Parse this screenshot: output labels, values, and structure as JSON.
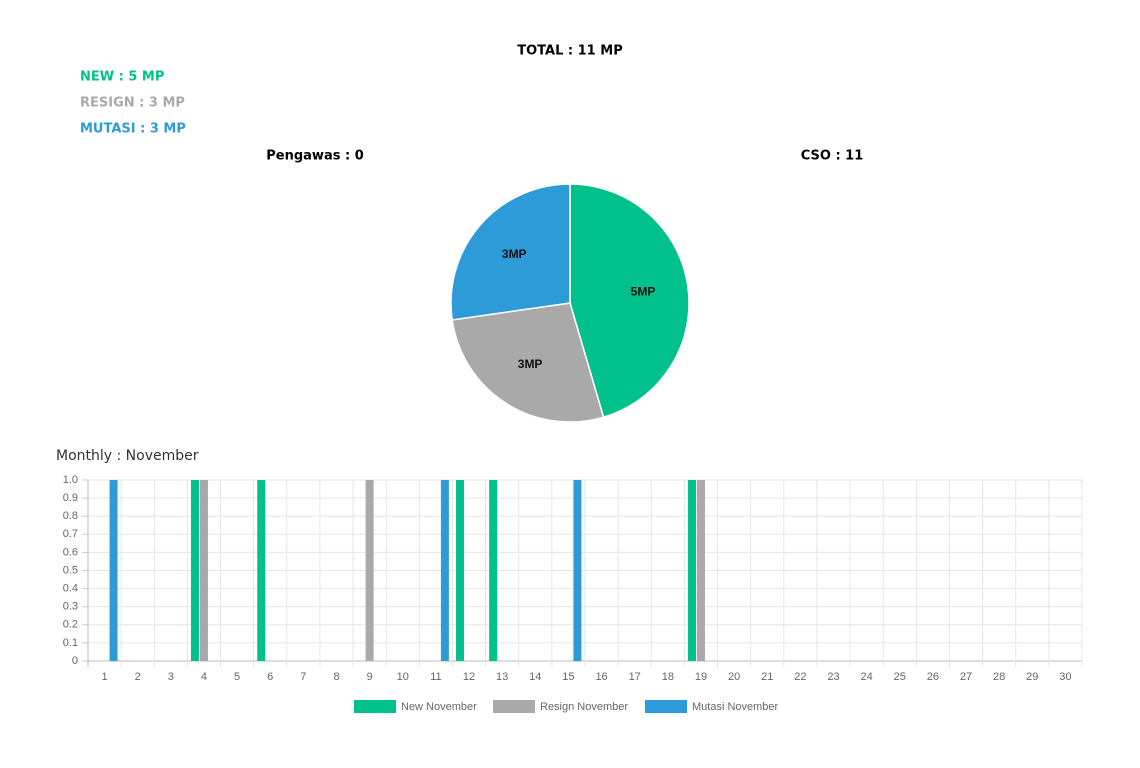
{
  "header": {
    "total": "TOTAL : 11 MP",
    "new": "NEW : 5 MP",
    "resign": "RESIGN : 3 MP",
    "mutasi": "MUTASI : 3 MP",
    "pengawas": "Pengawas : 0",
    "cso": "CSO : 11"
  },
  "chart_data": [
    {
      "type": "pie",
      "values": [
        5,
        3,
        3
      ],
      "value_labels": [
        "5MP",
        "3MP",
        "3MP"
      ],
      "colors": [
        "#00c08b",
        "#a9a9a9",
        "#2e9bd9"
      ]
    },
    {
      "type": "bar",
      "title": "Monthly : November",
      "categories": [
        "1",
        "2",
        "3",
        "4",
        "5",
        "6",
        "7",
        "8",
        "9",
        "10",
        "11",
        "12",
        "13",
        "14",
        "15",
        "16",
        "17",
        "18",
        "19",
        "20",
        "21",
        "22",
        "23",
        "24",
        "25",
        "26",
        "27",
        "28",
        "29",
        "30"
      ],
      "series": [
        {
          "name": "New November",
          "color": "#00c08b",
          "values": [
            0,
            0,
            0,
            1,
            0,
            1,
            0,
            0,
            0,
            0,
            0,
            1,
            1,
            0,
            0,
            0,
            0,
            0,
            1,
            0,
            0,
            0,
            0,
            0,
            0,
            0,
            0,
            0,
            0,
            0
          ]
        },
        {
          "name": "Resign November",
          "color": "#a9a9a9",
          "values": [
            0,
            0,
            0,
            1,
            0,
            0,
            0,
            0,
            1,
            0,
            0,
            0,
            0,
            0,
            0,
            0,
            0,
            0,
            1,
            0,
            0,
            0,
            0,
            0,
            0,
            0,
            0,
            0,
            0,
            0
          ]
        },
        {
          "name": "Mutasi November",
          "color": "#2e9bd9",
          "values": [
            1,
            0,
            0,
            0,
            0,
            0,
            0,
            0,
            0,
            0,
            1,
            0,
            0,
            0,
            1,
            0,
            0,
            0,
            0,
            0,
            0,
            0,
            0,
            0,
            0,
            0,
            0,
            0,
            0,
            0
          ]
        }
      ],
      "ylim": [
        0,
        1
      ],
      "yticks": [
        0,
        0.1,
        0.2,
        0.3,
        0.4,
        0.5,
        0.6,
        0.7,
        0.8,
        0.9,
        {
          "value": 1,
          "label": "1.0"
        }
      ],
      "grid": true
    }
  ]
}
